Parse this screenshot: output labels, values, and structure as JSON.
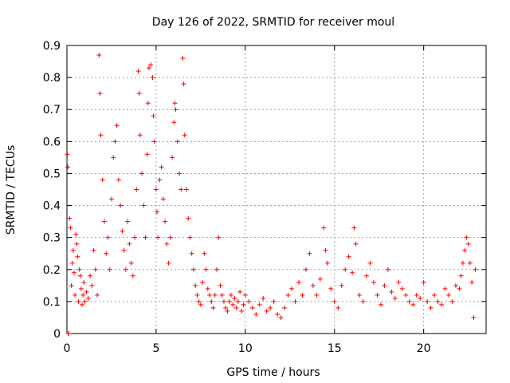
{
  "chart_data": {
    "type": "scatter",
    "title": "Day 126 of 2022, SRMTID for receiver moul",
    "xlabel": "GPS time / hours",
    "ylabel": "SRMTID / TECUs",
    "xlim": [
      0,
      23.5
    ],
    "ylim": [
      0,
      0.9
    ],
    "xticks": [
      0,
      5,
      10,
      15,
      20
    ],
    "xtick_labels": [
      "0",
      "5",
      "10",
      "15",
      "20"
    ],
    "yticks": [
      0,
      0.1,
      0.2,
      0.3,
      0.4,
      0.5,
      0.6,
      0.7,
      0.8,
      0.9
    ],
    "ytick_labels": [
      "0",
      "0.1",
      "0.2",
      "0.3",
      "0.4",
      "0.5",
      "0.6",
      "0.7",
      "0.8",
      "0.9"
    ],
    "grid": true,
    "marker": "+",
    "color": "#ff0000",
    "series": [
      {
        "name": "SRMTID",
        "x": [
          0.02,
          0.05,
          0.08,
          0.1,
          0.15,
          0.2,
          0.25,
          0.3,
          0.35,
          0.4,
          0.45,
          0.5,
          0.55,
          0.6,
          0.65,
          0.7,
          0.75,
          0.8,
          0.85,
          0.9,
          0.95,
          1.0,
          1.1,
          1.2,
          1.3,
          1.4,
          1.5,
          1.6,
          1.7,
          1.8,
          1.85,
          1.9,
          2.0,
          2.1,
          2.2,
          2.3,
          2.4,
          2.5,
          2.6,
          2.7,
          2.8,
          2.9,
          3.0,
          3.1,
          3.2,
          3.3,
          3.4,
          3.5,
          3.6,
          3.7,
          3.8,
          3.9,
          4.0,
          4.05,
          4.1,
          4.2,
          4.3,
          4.4,
          4.5,
          4.55,
          4.6,
          4.7,
          4.8,
          4.85,
          4.9,
          5.0,
          5.05,
          5.1,
          5.2,
          5.3,
          5.4,
          5.5,
          5.6,
          5.7,
          5.8,
          5.9,
          6.0,
          6.05,
          6.1,
          6.2,
          6.3,
          6.4,
          6.5,
          6.55,
          6.6,
          6.7,
          6.8,
          6.9,
          7.0,
          7.1,
          7.2,
          7.3,
          7.4,
          7.5,
          7.6,
          7.7,
          7.8,
          7.9,
          8.0,
          8.1,
          8.2,
          8.3,
          8.4,
          8.5,
          8.6,
          8.7,
          8.8,
          8.9,
          9.0,
          9.1,
          9.2,
          9.3,
          9.4,
          9.5,
          9.6,
          9.7,
          9.8,
          9.9,
          10.0,
          10.2,
          10.4,
          10.6,
          10.8,
          11.0,
          11.2,
          11.4,
          11.6,
          11.8,
          12.0,
          12.2,
          12.4,
          12.6,
          12.8,
          13.0,
          13.2,
          13.4,
          13.6,
          13.8,
          14.0,
          14.2,
          14.4,
          14.5,
          14.6,
          14.8,
          15.0,
          15.2,
          15.4,
          15.6,
          15.8,
          16.0,
          16.1,
          16.2,
          16.4,
          16.6,
          16.8,
          17.0,
          17.2,
          17.4,
          17.6,
          17.8,
          18.0,
          18.2,
          18.4,
          18.6,
          18.8,
          19.0,
          19.2,
          19.4,
          19.6,
          19.8,
          20.0,
          20.2,
          20.4,
          20.6,
          20.8,
          21.0,
          21.2,
          21.4,
          21.6,
          21.8,
          22.0,
          22.1,
          22.2,
          22.3,
          22.4,
          22.5,
          22.6,
          22.7,
          22.8,
          22.9
        ],
        "y": [
          0.56,
          0.52,
          0.0,
          0.0,
          0.36,
          0.33,
          0.15,
          0.22,
          0.26,
          0.19,
          0.12,
          0.31,
          0.28,
          0.24,
          0.1,
          0.2,
          0.18,
          0.14,
          0.09,
          0.12,
          0.16,
          0.1,
          0.13,
          0.11,
          0.18,
          0.15,
          0.26,
          0.2,
          0.12,
          0.87,
          0.75,
          0.62,
          0.48,
          0.35,
          0.25,
          0.3,
          0.2,
          0.42,
          0.55,
          0.6,
          0.65,
          0.48,
          0.4,
          0.32,
          0.26,
          0.2,
          0.35,
          0.28,
          0.22,
          0.18,
          0.3,
          0.45,
          0.82,
          0.75,
          0.62,
          0.5,
          0.4,
          0.3,
          0.56,
          0.72,
          0.83,
          0.84,
          0.8,
          0.68,
          0.6,
          0.45,
          0.38,
          0.3,
          0.48,
          0.52,
          0.42,
          0.35,
          0.28,
          0.22,
          0.3,
          0.55,
          0.66,
          0.72,
          0.7,
          0.6,
          0.5,
          0.45,
          0.86,
          0.78,
          0.62,
          0.45,
          0.36,
          0.3,
          0.25,
          0.2,
          0.15,
          0.12,
          0.1,
          0.09,
          0.16,
          0.25,
          0.2,
          0.14,
          0.12,
          0.1,
          0.08,
          0.12,
          0.2,
          0.3,
          0.15,
          0.12,
          0.1,
          0.08,
          0.07,
          0.1,
          0.12,
          0.09,
          0.11,
          0.08,
          0.1,
          0.13,
          0.07,
          0.09,
          0.12,
          0.1,
          0.08,
          0.06,
          0.09,
          0.11,
          0.07,
          0.08,
          0.1,
          0.06,
          0.05,
          0.08,
          0.12,
          0.14,
          0.1,
          0.16,
          0.12,
          0.2,
          0.25,
          0.15,
          0.12,
          0.17,
          0.33,
          0.26,
          0.22,
          0.14,
          0.1,
          0.08,
          0.15,
          0.2,
          0.24,
          0.19,
          0.33,
          0.28,
          0.12,
          0.1,
          0.18,
          0.22,
          0.16,
          0.12,
          0.09,
          0.15,
          0.2,
          0.13,
          0.11,
          0.16,
          0.14,
          0.12,
          0.1,
          0.09,
          0.12,
          0.11,
          0.16,
          0.1,
          0.08,
          0.12,
          0.1,
          0.09,
          0.14,
          0.12,
          0.1,
          0.15,
          0.14,
          0.18,
          0.22,
          0.26,
          0.3,
          0.28,
          0.22,
          0.16,
          0.05,
          0.2
        ]
      }
    ]
  }
}
